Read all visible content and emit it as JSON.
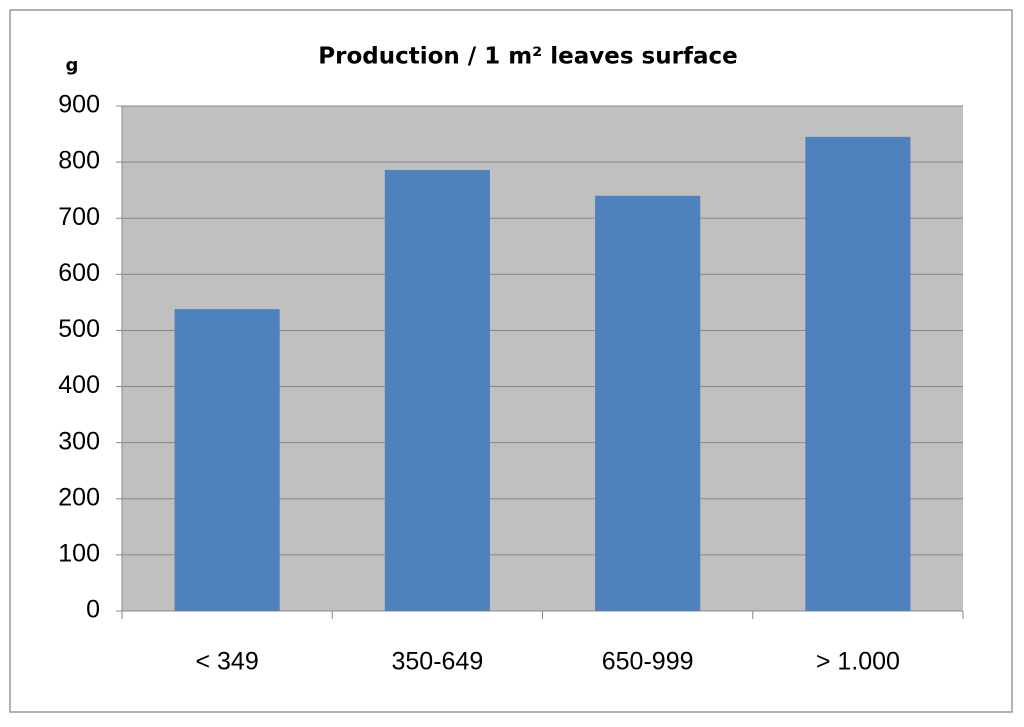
{
  "chart_data": {
    "type": "bar",
    "title": "Production  /  1 m²  leaves surface",
    "y_label": "g",
    "categories": [
      "< 349",
      "350-649",
      "650-999",
      "> 1.000"
    ],
    "values": [
      538,
      786,
      740,
      845
    ],
    "color": "#4f81bd",
    "ylim": [
      0,
      900
    ],
    "yticks": [
      0,
      100,
      200,
      300,
      400,
      500,
      600,
      700,
      800,
      900
    ],
    "grid": true
  }
}
